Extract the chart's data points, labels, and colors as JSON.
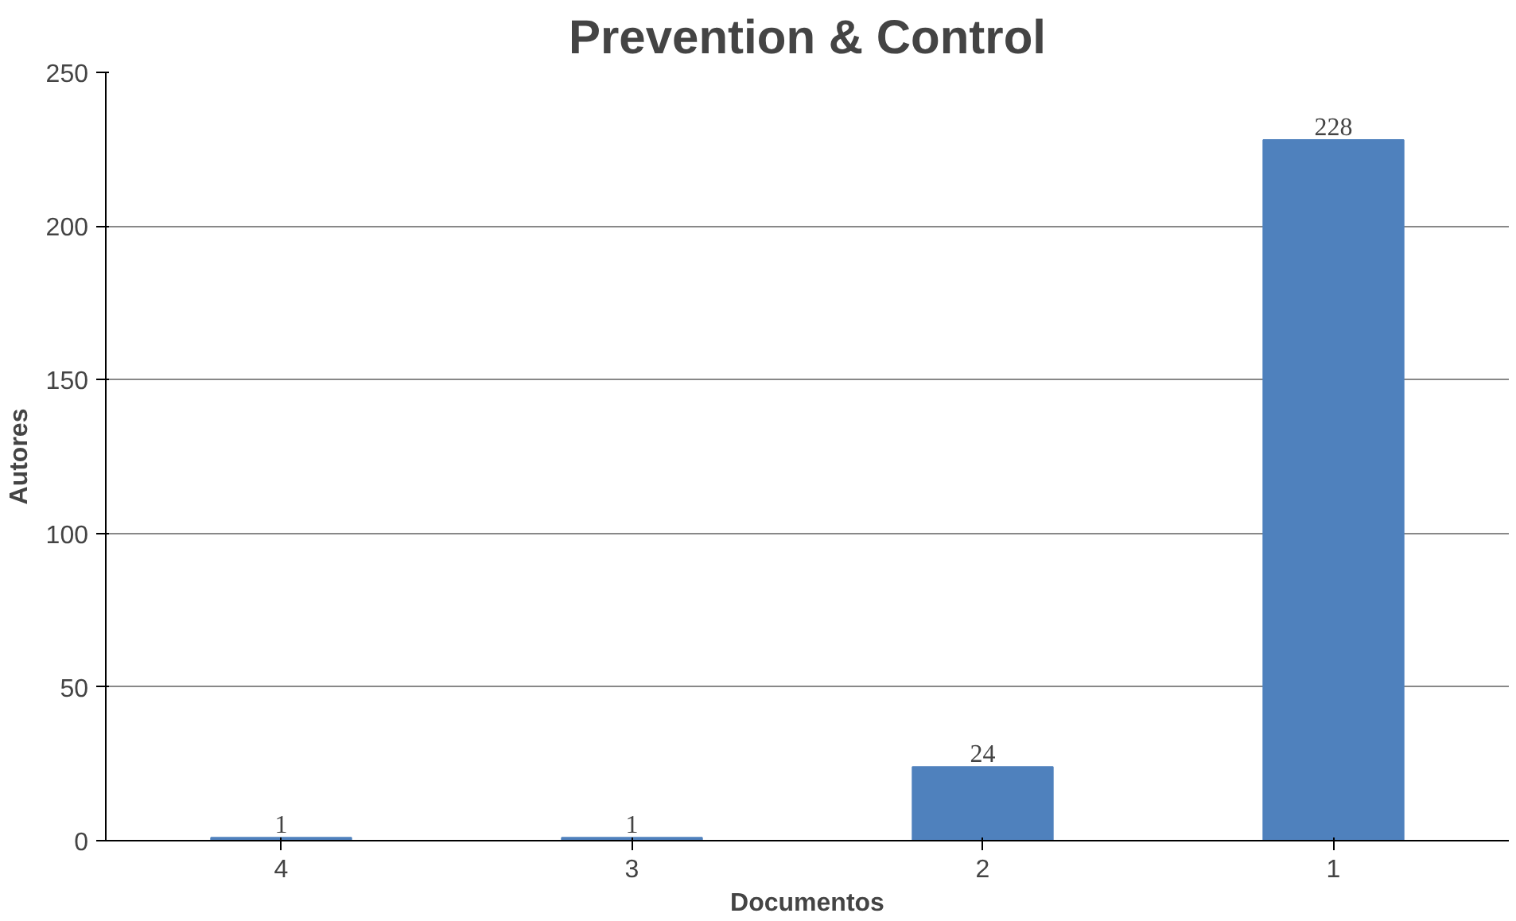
{
  "chart_data": {
    "type": "bar",
    "title": "Prevention & Control",
    "xlabel": "Documentos",
    "ylabel": "Autores",
    "categories": [
      "4",
      "3",
      "2",
      "1"
    ],
    "values": [
      1,
      1,
      24,
      228
    ],
    "color": "#4f81bd",
    "ylim": [
      0,
      250
    ],
    "yticks": [
      0,
      50,
      100,
      150,
      200,
      250
    ],
    "grid": "y",
    "data_labels": true
  }
}
